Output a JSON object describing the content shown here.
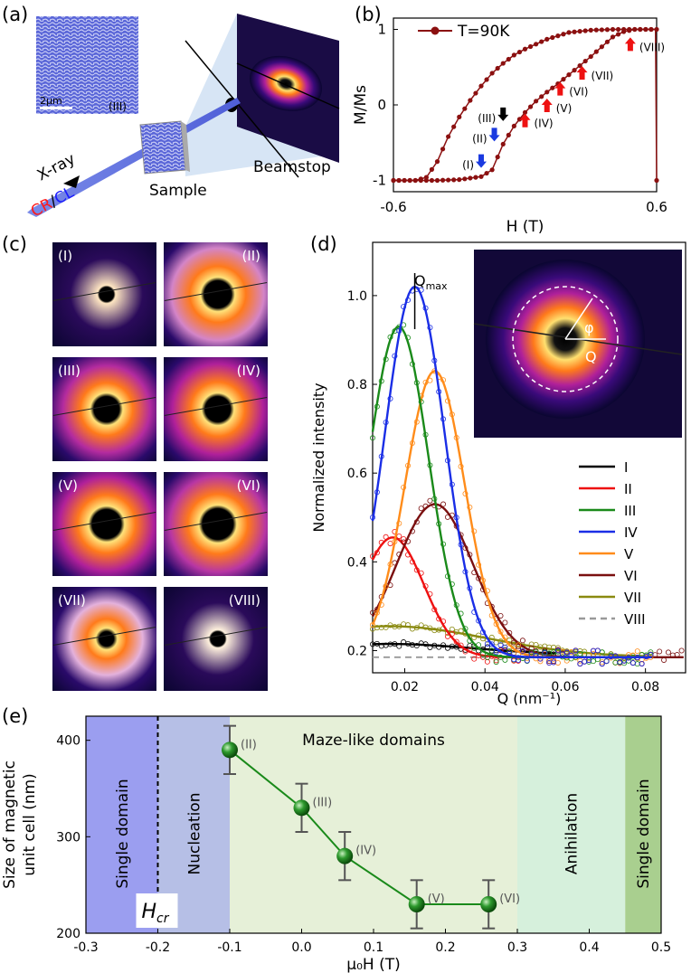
{
  "panel_labels": {
    "a": "(a)",
    "b": "(b)",
    "c": "(c)",
    "d": "(d)",
    "e": "(e)"
  },
  "panel_a": {
    "scale_bar": "2μm",
    "inset_label": "(III)",
    "xray_label": "X-ray",
    "cr_label": "CR",
    "slash": "/",
    "cl_label": "CL",
    "sample_label": "Sample",
    "beamstop_label": "Beamstop",
    "colors": {
      "cr": "#ff1a1a",
      "cl": "#1a1aff"
    }
  },
  "panel_c": {
    "tiles": [
      {
        "label": "(I)",
        "intensity": 0.25,
        "radius": 0.0,
        "align": "left"
      },
      {
        "label": "(II)",
        "intensity": 0.55,
        "radius": 0.9,
        "align": "right"
      },
      {
        "label": "(III)",
        "intensity": 0.95,
        "radius": 0.7,
        "align": "left"
      },
      {
        "label": "(IV)",
        "intensity": 1.0,
        "radius": 0.8,
        "align": "right"
      },
      {
        "label": "(V)",
        "intensity": 1.0,
        "radius": 1.0,
        "align": "left"
      },
      {
        "label": "(VI)",
        "intensity": 0.9,
        "radius": 1.1,
        "align": "right"
      },
      {
        "label": "(VII)",
        "intensity": 0.35,
        "radius": 0.0,
        "align": "left"
      },
      {
        "label": "(VIII)",
        "intensity": 0.05,
        "radius": 0.0,
        "align": "right"
      }
    ]
  },
  "chart_data": [
    {
      "id": "b",
      "type": "line",
      "title": "",
      "xlabel": "H (T)",
      "ylabel": "M/Ms",
      "xlim": [
        -0.6,
        0.6
      ],
      "ylim": [
        -1.15,
        1.15
      ],
      "xticks": [
        "-0.6",
        "0.6"
      ],
      "yticks": [
        "-1",
        "0",
        "1"
      ],
      "legend": "T=90K",
      "legend_position": "top-left",
      "series_color": "#8b1010",
      "branch_descending": {
        "x": [
          0.6,
          0.5,
          0.4,
          0.3,
          0.2,
          0.1,
          0.0,
          -0.05,
          -0.1,
          -0.15,
          -0.2,
          -0.25,
          -0.3,
          -0.35,
          -0.4,
          -0.45,
          -0.5,
          -0.6
        ],
        "y": [
          1,
          1,
          1,
          0.99,
          0.96,
          0.87,
          0.74,
          0.66,
          0.55,
          0.42,
          0.25,
          0.06,
          -0.16,
          -0.42,
          -0.75,
          -0.96,
          -1,
          -1
        ]
      },
      "branch_ascending": {
        "x": [
          -0.6,
          -0.5,
          -0.4,
          -0.3,
          -0.2,
          -0.15,
          -0.1,
          -0.05,
          0.0,
          0.05,
          0.1,
          0.15,
          0.2,
          0.25,
          0.3,
          0.35,
          0.4,
          0.45,
          0.5,
          0.6
        ],
        "y": [
          -1,
          -1,
          -1,
          -0.99,
          -0.95,
          -0.86,
          -0.52,
          -0.28,
          -0.1,
          0.05,
          0.17,
          0.28,
          0.4,
          0.52,
          0.64,
          0.77,
          0.9,
          0.97,
          1,
          1
        ]
      },
      "markers": [
        {
          "label": "(I)",
          "x": -0.2,
          "y": -0.75,
          "color": "#1a3ae0",
          "dir": "down"
        },
        {
          "label": "(II)",
          "x": -0.14,
          "y": -0.4,
          "color": "#1a3ae0",
          "dir": "down"
        },
        {
          "label": "(III)",
          "x": -0.1,
          "y": -0.13,
          "color": "#000000",
          "dir": "down"
        },
        {
          "label": "(IV)",
          "x": 0.0,
          "y": -0.2,
          "color": "#ee1111",
          "dir": "up"
        },
        {
          "label": "(V)",
          "x": 0.1,
          "y": 0.0,
          "color": "#ee1111",
          "dir": "up"
        },
        {
          "label": "(VI)",
          "x": 0.16,
          "y": 0.22,
          "color": "#ee1111",
          "dir": "up"
        },
        {
          "label": "(VII)",
          "x": 0.26,
          "y": 0.43,
          "color": "#ee1111",
          "dir": "up"
        },
        {
          "label": "(VIII)",
          "x": 0.48,
          "y": 0.81,
          "color": "#ee1111",
          "dir": "up"
        }
      ]
    },
    {
      "id": "d",
      "type": "line",
      "title": "",
      "xlabel": "Q (nm⁻¹)",
      "ylabel": "Normalized intensity",
      "xlim": [
        0.012,
        0.09
      ],
      "ylim": [
        0.15,
        1.12
      ],
      "xticks": [
        "0.02",
        "0.04",
        "0.06",
        "0.08"
      ],
      "yticks": [
        "0.2",
        "0.4",
        "0.6",
        "0.8",
        "1.0"
      ],
      "annotation": "Q",
      "annotation_sub": "max",
      "inset_phi": "φ",
      "inset_q": "Q",
      "legend_position": "right",
      "series": [
        {
          "name": "I",
          "color": "#000000",
          "baseline": 0.19,
          "peak": 0.215,
          "center": 0.016,
          "width": 0.03,
          "end": 0.058,
          "dashed": false
        },
        {
          "name": "II",
          "color": "#ee1111",
          "baseline": 0.185,
          "peak": 0.455,
          "center": 0.017,
          "width": 0.011,
          "end": 0.082,
          "dashed": false
        },
        {
          "name": "III",
          "color": "#1a8a1a",
          "baseline": 0.185,
          "peak": 0.93,
          "center": 0.0185,
          "width": 0.0105,
          "end": 0.082,
          "dashed": false
        },
        {
          "name": "IV",
          "color": "#1a2ee6",
          "baseline": 0.185,
          "peak": 1.02,
          "center": 0.0225,
          "width": 0.0105,
          "end": 0.082,
          "dashed": false
        },
        {
          "name": "V",
          "color": "#ff8c1a",
          "baseline": 0.185,
          "peak": 0.83,
          "center": 0.0275,
          "width": 0.0105,
          "end": 0.082,
          "dashed": false
        },
        {
          "name": "VI",
          "color": "#7a0f0f",
          "baseline": 0.185,
          "peak": 0.53,
          "center": 0.0275,
          "width": 0.0135,
          "end": 0.09,
          "dashed": false
        },
        {
          "name": "VII",
          "color": "#8a8a10",
          "baseline": 0.185,
          "peak": 0.255,
          "center": 0.016,
          "width": 0.035,
          "end": 0.082,
          "dashed": false
        },
        {
          "name": "VIII",
          "color": "#999999",
          "baseline": 0.185,
          "peak": 0.185,
          "center": 0.05,
          "width": 1,
          "end": 0.09,
          "dashed": true
        }
      ]
    },
    {
      "id": "e",
      "type": "scatter",
      "title": "",
      "xlabel": "μ₀H (T)",
      "ylabel_line1": "Size of magnetic",
      "ylabel_line2": "unit cell (nm)",
      "xlim": [
        -0.3,
        0.5
      ],
      "ylim": [
        200,
        425
      ],
      "xticks": [
        "-0.3",
        "-0.2",
        "-0.1",
        "0.0",
        "0.1",
        "0.2",
        "0.3",
        "0.4",
        "0.5"
      ],
      "yticks": [
        "200",
        "300",
        "400"
      ],
      "hcr_label": "H",
      "hcr_sub": "cr",
      "hcr_x": -0.2,
      "regions": [
        {
          "label": "Single domain",
          "from": -0.3,
          "to": -0.1,
          "color": "#9b9ef0",
          "vertical": true
        },
        {
          "label": "Nucleation",
          "from": -0.2,
          "to": -0.1,
          "color": "#b6bfe6",
          "vertical": true
        },
        {
          "label": "Maze-like domains",
          "from": -0.1,
          "to": 0.3,
          "color": "#e6f0d8",
          "vertical": false
        },
        {
          "label": "Anihilation",
          "from": 0.3,
          "to": 0.45,
          "color": "#d6f0dc",
          "vertical": true
        },
        {
          "label": "Single domain",
          "from": 0.45,
          "to": 0.5,
          "color": "#a9cf8f",
          "vertical": true
        }
      ],
      "points": [
        {
          "label": "(II)",
          "x": -0.1,
          "y": 390,
          "err": 25
        },
        {
          "label": "(III)",
          "x": 0.0,
          "y": 330,
          "err": 25
        },
        {
          "label": "(IV)",
          "x": 0.06,
          "y": 280,
          "err": 25
        },
        {
          "label": "(V)",
          "x": 0.16,
          "y": 230,
          "err": 25
        },
        {
          "label": "(VI)",
          "x": 0.26,
          "y": 230,
          "err": 25
        }
      ],
      "point_color": "#1a8a1a"
    }
  ]
}
